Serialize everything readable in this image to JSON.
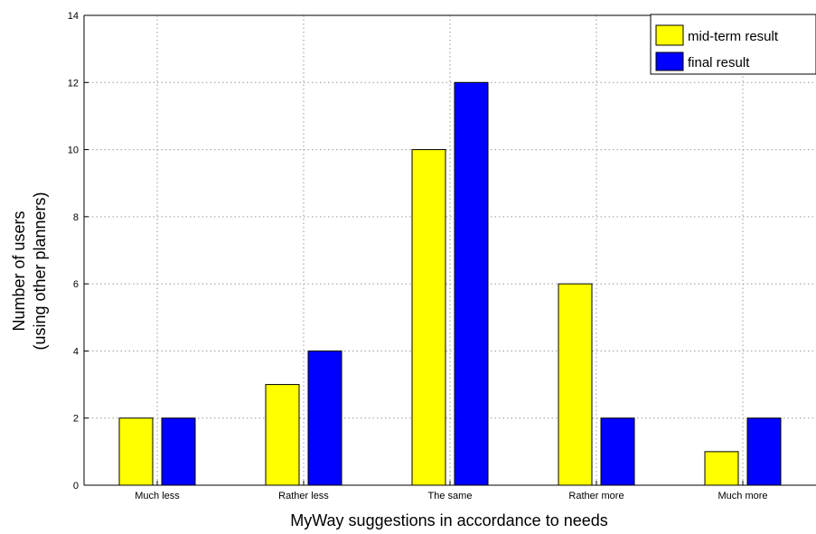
{
  "chart_data": {
    "type": "bar",
    "title": "",
    "xlabel": "MyWay suggestions in accordance to needs",
    "ylabel_line1": "Number of users",
    "ylabel_line2": "(using other planners)",
    "categories": [
      "Much less",
      "Rather less",
      "The same",
      "Rather more",
      "Much more"
    ],
    "series": [
      {
        "name": "mid-term result",
        "color": "#ffff00",
        "values": [
          2,
          3,
          10,
          6,
          1
        ]
      },
      {
        "name": "final result",
        "color": "#0000ff",
        "values": [
          2,
          4,
          12,
          2,
          2
        ]
      }
    ],
    "ylim": [
      0,
      14
    ],
    "yticks": [
      0,
      2,
      4,
      6,
      8,
      10,
      12,
      14
    ],
    "grid": true,
    "legend_position": "top-right"
  }
}
